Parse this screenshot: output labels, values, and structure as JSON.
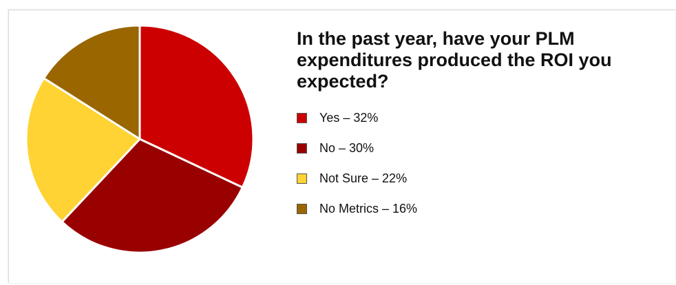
{
  "chart_data": {
    "type": "pie",
    "title": "In the past year, have your PLM expenditures produced the ROI you expected?",
    "legend_position": "right",
    "slices": [
      {
        "label": "Yes – 32%",
        "category": "Yes",
        "value": 32,
        "color": "#cc0000"
      },
      {
        "label": "No – 30%",
        "category": "No",
        "value": 30,
        "color": "#990000"
      },
      {
        "label": "Not Sure – 22%",
        "category": "Not Sure",
        "value": 22,
        "color": "#ffd333"
      },
      {
        "label": "No Metrics – 16%",
        "category": "No Metrics",
        "value": 16,
        "color": "#996600"
      }
    ]
  }
}
